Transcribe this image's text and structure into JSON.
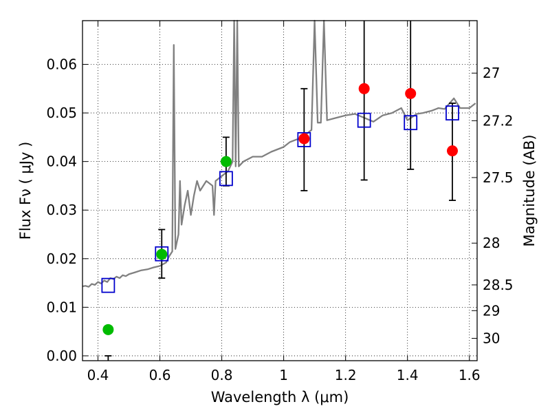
{
  "chart_data": {
    "type": "scatter",
    "xlabel": "Wavelength  λ (μm)",
    "ylabel": "Flux  Fν  ( μJy )",
    "y2label": "Magnitude (AB)",
    "xlim": [
      0.35,
      1.625
    ],
    "ylim": [
      -0.001,
      0.069
    ],
    "grid": true,
    "grid_style": "dotted",
    "x_ticks": [
      0.4,
      0.6,
      0.8,
      1.0,
      1.2,
      1.4,
      1.6
    ],
    "x_tick_labels": [
      "0.4",
      "0.6",
      "0.8",
      "1",
      "1.2",
      "1.4",
      "1.6"
    ],
    "y_ticks": [
      0.0,
      0.01,
      0.02,
      0.03,
      0.04,
      0.05,
      0.06
    ],
    "y_tick_labels": [
      "0.00",
      "0.01",
      "0.02",
      "0.03",
      "0.04",
      "0.05",
      "0.06"
    ],
    "y2_ticks": [
      {
        "label": "27",
        "flux": 0.0582
      },
      {
        "label": "27.2",
        "flux": 0.0484
      },
      {
        "label": "27.5",
        "flux": 0.0367
      },
      {
        "label": "28",
        "flux": 0.0232
      },
      {
        "label": "28.5",
        "flux": 0.0146
      },
      {
        "label": "29",
        "flux": 0.0093
      },
      {
        "label": "30",
        "flux": 0.0036
      }
    ],
    "colors": {
      "spectrum": "#808080",
      "model_box": "#0000cc",
      "green_points": "#00bb00",
      "red_points": "#ff0000",
      "error_bars": "#000000"
    },
    "series": [
      {
        "kind": "line",
        "points": [
          [
            0.35,
            0.0143
          ],
          [
            0.36,
            0.0144
          ],
          [
            0.37,
            0.0142
          ],
          [
            0.38,
            0.0148
          ],
          [
            0.39,
            0.0146
          ],
          [
            0.4,
            0.0152
          ],
          [
            0.41,
            0.0149
          ],
          [
            0.42,
            0.0155
          ],
          [
            0.43,
            0.0152
          ],
          [
            0.44,
            0.016
          ],
          [
            0.45,
            0.0158
          ],
          [
            0.46,
            0.0163
          ],
          [
            0.47,
            0.016
          ],
          [
            0.48,
            0.0166
          ],
          [
            0.49,
            0.0164
          ],
          [
            0.5,
            0.0168
          ],
          [
            0.52,
            0.0172
          ],
          [
            0.54,
            0.0176
          ],
          [
            0.56,
            0.0178
          ],
          [
            0.58,
            0.0182
          ],
          [
            0.6,
            0.0185
          ],
          [
            0.62,
            0.0192
          ],
          [
            0.63,
            0.0205
          ],
          [
            0.64,
            0.0215
          ],
          [
            0.645,
            0.064
          ],
          [
            0.65,
            0.022
          ],
          [
            0.66,
            0.025
          ],
          [
            0.665,
            0.036
          ],
          [
            0.67,
            0.027
          ],
          [
            0.68,
            0.031
          ],
          [
            0.69,
            0.034
          ],
          [
            0.7,
            0.029
          ],
          [
            0.71,
            0.033
          ],
          [
            0.72,
            0.036
          ],
          [
            0.73,
            0.034
          ],
          [
            0.75,
            0.036
          ],
          [
            0.77,
            0.035
          ],
          [
            0.775,
            0.029
          ],
          [
            0.78,
            0.036
          ],
          [
            0.8,
            0.037
          ],
          [
            0.82,
            0.038
          ],
          [
            0.835,
            0.04
          ],
          [
            0.84,
            0.069
          ],
          [
            0.845,
            0.039
          ],
          [
            0.85,
            0.069
          ],
          [
            0.855,
            0.039
          ],
          [
            0.87,
            0.04
          ],
          [
            0.9,
            0.041
          ],
          [
            0.93,
            0.041
          ],
          [
            0.96,
            0.042
          ],
          [
            0.98,
            0.0425
          ],
          [
            1.0,
            0.043
          ],
          [
            1.02,
            0.044
          ],
          [
            1.04,
            0.0445
          ],
          [
            1.06,
            0.0448
          ],
          [
            1.08,
            0.046
          ],
          [
            1.09,
            0.0465
          ],
          [
            1.1,
            0.069
          ],
          [
            1.11,
            0.048
          ],
          [
            1.12,
            0.048
          ],
          [
            1.13,
            0.069
          ],
          [
            1.14,
            0.0485
          ],
          [
            1.17,
            0.049
          ],
          [
            1.2,
            0.0495
          ],
          [
            1.23,
            0.0498
          ],
          [
            1.26,
            0.049
          ],
          [
            1.29,
            0.0482
          ],
          [
            1.32,
            0.0495
          ],
          [
            1.35,
            0.05
          ],
          [
            1.38,
            0.051
          ],
          [
            1.4,
            0.0485
          ],
          [
            1.43,
            0.0498
          ],
          [
            1.45,
            0.05
          ],
          [
            1.48,
            0.0505
          ],
          [
            1.5,
            0.051
          ],
          [
            1.52,
            0.0508
          ],
          [
            1.55,
            0.053
          ],
          [
            1.57,
            0.051
          ],
          [
            1.6,
            0.051
          ],
          [
            1.62,
            0.052
          ]
        ]
      },
      {
        "kind": "model",
        "points": [
          [
            0.433,
            0.0145
          ],
          [
            0.606,
            0.021
          ],
          [
            0.814,
            0.0365
          ],
          [
            1.066,
            0.0445
          ],
          [
            1.26,
            0.0485
          ],
          [
            1.41,
            0.048
          ],
          [
            1.545,
            0.05
          ]
        ]
      },
      {
        "kind": "green",
        "points": [
          {
            "x": 0.433,
            "y": 0.0054,
            "lo": null,
            "hi": 0.0
          },
          {
            "x": 0.606,
            "y": 0.0209,
            "lo": 0.016,
            "hi": 0.026
          },
          {
            "x": 0.814,
            "y": 0.04,
            "lo": 0.035,
            "hi": 0.045
          }
        ]
      },
      {
        "kind": "red",
        "points": [
          {
            "x": 1.066,
            "y": 0.0447,
            "lo": 0.034,
            "hi": 0.055
          },
          {
            "x": 1.26,
            "y": 0.055,
            "lo": 0.0362,
            "hi": 0.069
          },
          {
            "x": 1.41,
            "y": 0.054,
            "lo": 0.0384,
            "hi": 0.069
          },
          {
            "x": 1.545,
            "y": 0.0422,
            "lo": 0.032,
            "hi": 0.052
          }
        ]
      }
    ]
  }
}
